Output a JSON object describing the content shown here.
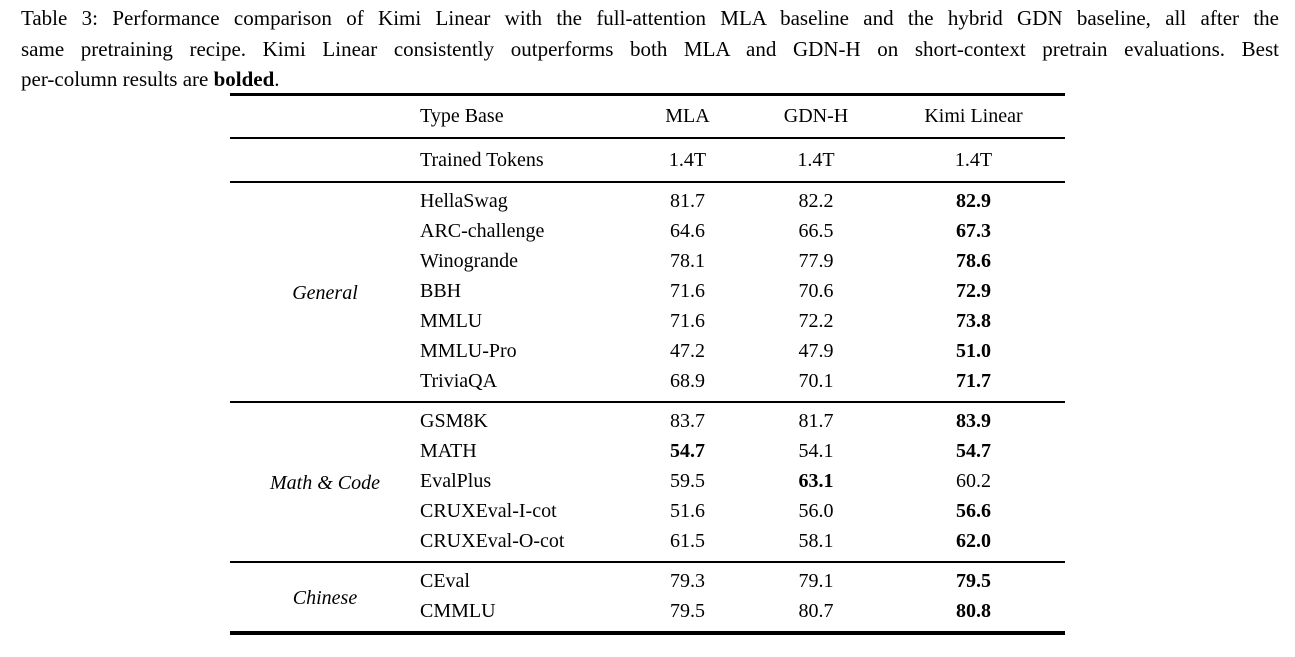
{
  "caption": {
    "line1": "Table 3: Performance comparison of Kimi Linear with the full-attention MLA baseline and the hybrid GDN baseline, all after the",
    "line2": "same pretraining recipe. Kimi Linear consistently outperforms both MLA and GDN-H on short-context pretrain evaluations. Best",
    "line3_prefix": "per-column results are ",
    "line3_bold": "bolded",
    "line3_suffix": "."
  },
  "table": {
    "columns": [
      "Type Base",
      "MLA",
      "GDN-H",
      "Kimi Linear"
    ],
    "info_row": {
      "label": "Trained Tokens",
      "values": [
        "1.4T",
        "1.4T",
        "1.4T"
      ]
    },
    "sections": [
      {
        "category": "General",
        "rows": [
          {
            "name": "HellaSwag",
            "values": [
              {
                "v": "81.7",
                "b": false
              },
              {
                "v": "82.2",
                "b": false
              },
              {
                "v": "82.9",
                "b": true
              }
            ]
          },
          {
            "name": "ARC-challenge",
            "values": [
              {
                "v": "64.6",
                "b": false
              },
              {
                "v": "66.5",
                "b": false
              },
              {
                "v": "67.3",
                "b": true
              }
            ]
          },
          {
            "name": "Winogrande",
            "values": [
              {
                "v": "78.1",
                "b": false
              },
              {
                "v": "77.9",
                "b": false
              },
              {
                "v": "78.6",
                "b": true
              }
            ]
          },
          {
            "name": "BBH",
            "values": [
              {
                "v": "71.6",
                "b": false
              },
              {
                "v": "70.6",
                "b": false
              },
              {
                "v": "72.9",
                "b": true
              }
            ]
          },
          {
            "name": "MMLU",
            "values": [
              {
                "v": "71.6",
                "b": false
              },
              {
                "v": "72.2",
                "b": false
              },
              {
                "v": "73.8",
                "b": true
              }
            ]
          },
          {
            "name": "MMLU-Pro",
            "values": [
              {
                "v": "47.2",
                "b": false
              },
              {
                "v": "47.9",
                "b": false
              },
              {
                "v": "51.0",
                "b": true
              }
            ]
          },
          {
            "name": "TriviaQA",
            "values": [
              {
                "v": "68.9",
                "b": false
              },
              {
                "v": "70.1",
                "b": false
              },
              {
                "v": "71.7",
                "b": true
              }
            ]
          }
        ]
      },
      {
        "category": "Math & Code",
        "rows": [
          {
            "name": "GSM8K",
            "values": [
              {
                "v": "83.7",
                "b": false
              },
              {
                "v": "81.7",
                "b": false
              },
              {
                "v": "83.9",
                "b": true
              }
            ]
          },
          {
            "name": "MATH",
            "values": [
              {
                "v": "54.7",
                "b": true
              },
              {
                "v": "54.1",
                "b": false
              },
              {
                "v": "54.7",
                "b": true
              }
            ]
          },
          {
            "name": "EvalPlus",
            "values": [
              {
                "v": "59.5",
                "b": false
              },
              {
                "v": "63.1",
                "b": true
              },
              {
                "v": "60.2",
                "b": false
              }
            ]
          },
          {
            "name": "CRUXEval-I-cot",
            "values": [
              {
                "v": "51.6",
                "b": false
              },
              {
                "v": "56.0",
                "b": false
              },
              {
                "v": "56.6",
                "b": true
              }
            ]
          },
          {
            "name": "CRUXEval-O-cot",
            "values": [
              {
                "v": "61.5",
                "b": false
              },
              {
                "v": "58.1",
                "b": false
              },
              {
                "v": "62.0",
                "b": true
              }
            ]
          }
        ]
      },
      {
        "category": "Chinese",
        "rows": [
          {
            "name": "CEval",
            "values": [
              {
                "v": "79.3",
                "b": false
              },
              {
                "v": "79.1",
                "b": false
              },
              {
                "v": "79.5",
                "b": true
              }
            ]
          },
          {
            "name": "CMMLU",
            "values": [
              {
                "v": "79.5",
                "b": false
              },
              {
                "v": "80.7",
                "b": false
              },
              {
                "v": "80.8",
                "b": true
              }
            ]
          }
        ]
      }
    ]
  }
}
